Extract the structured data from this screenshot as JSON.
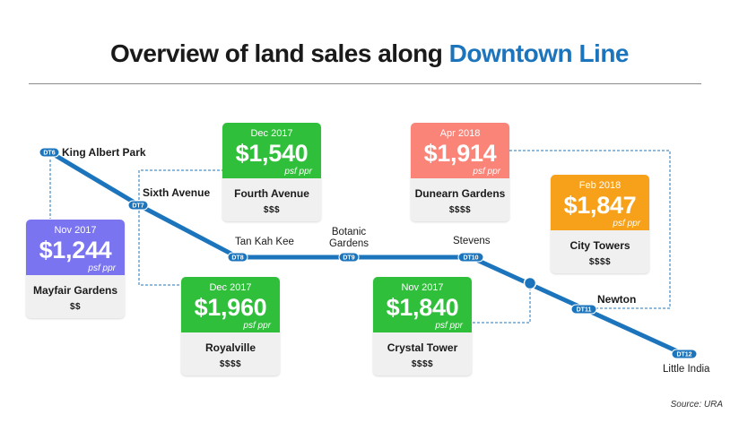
{
  "title": {
    "main": "Overview of land sales along",
    "highlight": "Downtown Line"
  },
  "colors": {
    "line_blue": "#1c75bc",
    "purple": "#7b74f0",
    "green": "#2fbf3a",
    "salmon": "#fa8478",
    "orange": "#f7a11a"
  },
  "stations": [
    {
      "code": "DT6",
      "name": "King Albert Park"
    },
    {
      "code": "DT7",
      "name": "Sixth Avenue"
    },
    {
      "code": "DT8",
      "name": "Tan Kah Kee"
    },
    {
      "code": "DT9",
      "name_line1": "Botanic",
      "name_line2": "Gardens"
    },
    {
      "code": "DT10",
      "name": "Stevens"
    },
    {
      "code": "DT11",
      "name": "Newton"
    },
    {
      "code": "DT12",
      "name": "Little India"
    }
  ],
  "cards": [
    {
      "date": "Nov 2017",
      "price": "$1,244",
      "unit": "psf ppr",
      "name": "Mayfair Gardens",
      "tier": "$$"
    },
    {
      "date": "Dec 2017",
      "price": "$1,540",
      "unit": "psf ppr",
      "name": "Fourth Avenue",
      "tier": "$$$"
    },
    {
      "date": "Dec 2017",
      "price": "$1,960",
      "unit": "psf ppr",
      "name": "Royalville",
      "tier": "$$$$"
    },
    {
      "date": "Apr 2018",
      "price": "$1,914",
      "unit": "psf ppr",
      "name": "Dunearn Gardens",
      "tier": "$$$$"
    },
    {
      "date": "Nov 2017",
      "price": "$1,840",
      "unit": "psf ppr",
      "name": "Crystal Tower",
      "tier": "$$$$"
    },
    {
      "date": "Feb 2018",
      "price": "$1,847",
      "unit": "psf ppr",
      "name": "City Towers",
      "tier": "$$$$"
    }
  ],
  "source": "Source: URA"
}
